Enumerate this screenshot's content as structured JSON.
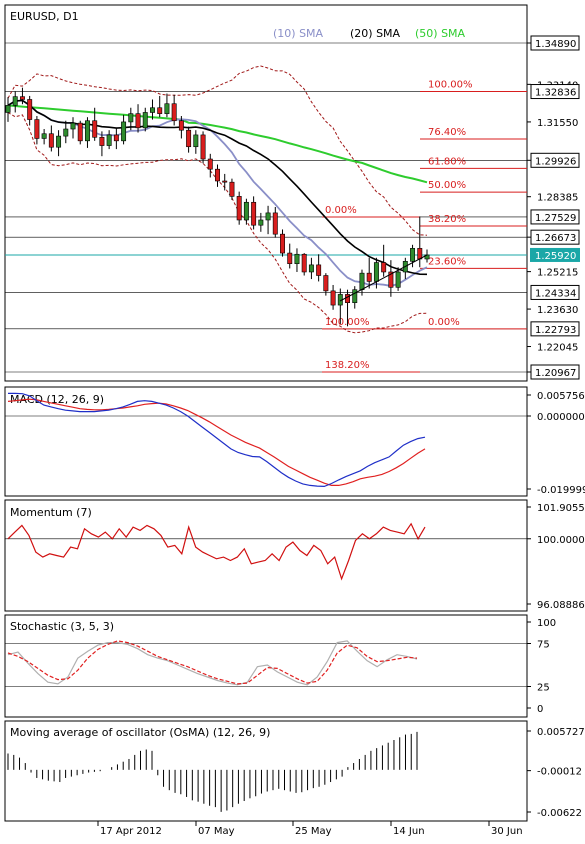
{
  "chart_data": [
    {
      "type": "candlestick",
      "title": "EURUSD, D1",
      "legend": [
        {
          "name": "(10) SMA",
          "color": "#8A8FC8"
        },
        {
          "name": "(20) SMA",
          "color": "#000000"
        },
        {
          "name": "(50) SMA",
          "color": "#2ECC2E"
        }
      ],
      "y_ticks": [
        "1.34890",
        "1.33140",
        "1.31550",
        "1.29926",
        "1.28385",
        "1.26673",
        "1.25215",
        "1.23630",
        "1.22045",
        "1.20967"
      ],
      "price_tags": [
        {
          "label": "1.34890",
          "value": 1.3489,
          "style": "box"
        },
        {
          "label": "1.32836",
          "value": 1.32836,
          "style": "box"
        },
        {
          "label": "1.29926",
          "value": 1.29926,
          "style": "box"
        },
        {
          "label": "1.27529",
          "value": 1.27529,
          "style": "box"
        },
        {
          "label": "1.26673",
          "value": 1.26673,
          "style": "box"
        },
        {
          "label": "1.25920",
          "value": 1.2592,
          "style": "current"
        },
        {
          "label": "1.24334",
          "value": 1.24334,
          "style": "box"
        },
        {
          "label": "1.22793",
          "value": 1.22793,
          "style": "box"
        },
        {
          "label": "1.20967",
          "value": 1.20967,
          "style": "box"
        }
      ],
      "fib_upper": [
        {
          "label": "100.00%",
          "value": 1.32836
        },
        {
          "label": "76.40%",
          "value": 1.30826
        },
        {
          "label": "61.80%",
          "value": 1.29585
        },
        {
          "label": "50.00%",
          "value": 1.28577
        },
        {
          "label": "38.20%",
          "value": 1.27143
        },
        {
          "label": "23.60%",
          "value": 1.25352
        },
        {
          "label": "0.00%",
          "value": 1.22793
        }
      ],
      "fib_lower": [
        {
          "label": "0.00%",
          "value": 1.27529
        },
        {
          "label": "100.00%",
          "value": 1.22793
        },
        {
          "label": "138.20%",
          "value": 1.20967
        }
      ],
      "candles": [
        [
          1.3195,
          1.326,
          1.3155,
          1.3225
        ],
        [
          1.3225,
          1.3285,
          1.3195,
          1.3262
        ],
        [
          1.3262,
          1.33,
          1.323,
          1.325
        ],
        [
          1.325,
          1.3265,
          1.314,
          1.3165
        ],
        [
          1.3165,
          1.318,
          1.306,
          1.3085
        ],
        [
          1.3085,
          1.3125,
          1.306,
          1.3105
        ],
        [
          1.3105,
          1.314,
          1.303,
          1.3048
        ],
        [
          1.3048,
          1.312,
          1.301,
          1.3095
        ],
        [
          1.3095,
          1.316,
          1.3065,
          1.3125
        ],
        [
          1.3125,
          1.3175,
          1.3085,
          1.315
        ],
        [
          1.315,
          1.316,
          1.306,
          1.3075
        ],
        [
          1.3075,
          1.3175,
          1.3045,
          1.316
        ],
        [
          1.316,
          1.3215,
          1.3075,
          1.309
        ],
        [
          1.309,
          1.3115,
          1.301,
          1.3055
        ],
        [
          1.3055,
          1.312,
          1.304,
          1.31
        ],
        [
          1.31,
          1.313,
          1.304,
          1.3075
        ],
        [
          1.3075,
          1.3185,
          1.306,
          1.3155
        ],
        [
          1.3155,
          1.3215,
          1.312,
          1.319
        ],
        [
          1.319,
          1.323,
          1.311,
          1.313
        ],
        [
          1.313,
          1.3215,
          1.3115,
          1.3195
        ],
        [
          1.3195,
          1.325,
          1.3165,
          1.3215
        ],
        [
          1.3215,
          1.3265,
          1.3175,
          1.319
        ],
        [
          1.319,
          1.3275,
          1.3175,
          1.3232
        ],
        [
          1.3232,
          1.327,
          1.314,
          1.316
        ],
        [
          1.316,
          1.318,
          1.3085,
          1.312
        ],
        [
          1.312,
          1.3135,
          1.3025,
          1.305
        ],
        [
          1.305,
          1.312,
          1.302,
          1.31
        ],
        [
          1.31,
          1.3115,
          1.298,
          1.2998
        ],
        [
          1.2998,
          1.302,
          1.292,
          1.2955
        ],
        [
          1.2955,
          1.2975,
          1.288,
          1.2905
        ],
        [
          1.2905,
          1.2935,
          1.2865,
          1.29
        ],
        [
          1.29,
          1.2915,
          1.2825,
          1.284
        ],
        [
          1.284,
          1.286,
          1.272,
          1.274
        ],
        [
          1.274,
          1.283,
          1.272,
          1.2815
        ],
        [
          1.2815,
          1.284,
          1.27,
          1.2718
        ],
        [
          1.2718,
          1.277,
          1.269,
          1.274
        ],
        [
          1.274,
          1.28,
          1.268,
          1.277
        ],
        [
          1.277,
          1.2795,
          1.2665,
          1.268
        ],
        [
          1.268,
          1.27,
          1.2585,
          1.26
        ],
        [
          1.26,
          1.264,
          1.2535,
          1.2555
        ],
        [
          1.2555,
          1.262,
          1.252,
          1.2595
        ],
        [
          1.2595,
          1.26,
          1.2505,
          1.252
        ],
        [
          1.252,
          1.258,
          1.249,
          1.255
        ],
        [
          1.255,
          1.2595,
          1.248,
          1.2505
        ],
        [
          1.2505,
          1.2515,
          1.242,
          1.244
        ],
        [
          1.244,
          1.2465,
          1.236,
          1.238
        ],
        [
          1.238,
          1.245,
          1.23,
          1.2425
        ],
        [
          1.2425,
          1.2445,
          1.229,
          1.239
        ],
        [
          1.239,
          1.246,
          1.2365,
          1.2445
        ],
        [
          1.2445,
          1.253,
          1.242,
          1.2515
        ],
        [
          1.2515,
          1.258,
          1.245,
          1.248
        ],
        [
          1.248,
          1.258,
          1.245,
          1.256
        ],
        [
          1.256,
          1.2635,
          1.25,
          1.252
        ],
        [
          1.252,
          1.257,
          1.2415,
          1.2455
        ],
        [
          1.2455,
          1.254,
          1.244,
          1.252
        ],
        [
          1.252,
          1.258,
          1.249,
          1.2565
        ],
        [
          1.2565,
          1.2635,
          1.254,
          1.262
        ],
        [
          1.262,
          1.2755,
          1.254,
          1.2575
        ],
        [
          1.2575,
          1.2615,
          1.256,
          1.2592
        ]
      ]
    },
    {
      "type": "line",
      "title": "MACD (12, 26, 9)",
      "y_ticks": [
        "0.005756",
        "0.000000",
        "-0.019999"
      ],
      "series": [
        {
          "color": "#1F2FC8",
          "values": [
            0.0062,
            0.0062,
            0.0061,
            0.0055,
            0.0042,
            0.003,
            0.0025,
            0.002,
            0.0016,
            0.0014,
            0.0012,
            0.0012,
            0.0012,
            0.0014,
            0.0016,
            0.002,
            0.0025,
            0.0032,
            0.004,
            0.0042,
            0.004,
            0.0035,
            0.003,
            0.0022,
            0.0012,
            0.0,
            -0.0015,
            -0.003,
            -0.0045,
            -0.006,
            -0.0075,
            -0.009,
            -0.01,
            -0.0106,
            -0.0111,
            -0.0112,
            -0.0125,
            -0.014,
            -0.0155,
            -0.0168,
            -0.0178,
            -0.0186,
            -0.019,
            -0.0192,
            -0.0193,
            -0.0185,
            -0.0175,
            -0.0166,
            -0.0158,
            -0.015,
            -0.0138,
            -0.0128,
            -0.012,
            -0.0112,
            -0.0096,
            -0.008,
            -0.007,
            -0.0062,
            -0.0058
          ]
        },
        {
          "color": "#E02020",
          "values": [
            0.004,
            0.0042,
            0.0044,
            0.0046,
            0.0044,
            0.004,
            0.0036,
            0.0032,
            0.0028,
            0.0024,
            0.002,
            0.0018,
            0.0017,
            0.0017,
            0.0018,
            0.002,
            0.0022,
            0.0025,
            0.0028,
            0.0032,
            0.0034,
            0.0035,
            0.0033,
            0.0028,
            0.0022,
            0.0015,
            0.0005,
            -0.0005,
            -0.0016,
            -0.0028,
            -0.004,
            -0.0052,
            -0.0062,
            -0.0072,
            -0.008,
            -0.0088,
            -0.01,
            -0.0112,
            -0.0125,
            -0.0138,
            -0.0148,
            -0.0158,
            -0.0168,
            -0.0176,
            -0.0184,
            -0.019,
            -0.019,
            -0.0186,
            -0.018,
            -0.0172,
            -0.0168,
            -0.0165,
            -0.016,
            -0.0152,
            -0.0142,
            -0.013,
            -0.0116,
            -0.0102,
            -0.009
          ]
        }
      ]
    },
    {
      "type": "line",
      "title": "Momentum (7)",
      "y_ticks": [
        "101.9055",
        "100.0000",
        "96.08886"
      ],
      "series": [
        {
          "color": "#D01010",
          "values": [
            100.0,
            100.4,
            100.8,
            100.2,
            99.2,
            98.9,
            99.1,
            99.0,
            98.9,
            99.5,
            99.4,
            100.6,
            100.3,
            100.1,
            100.4,
            100.0,
            100.6,
            100.1,
            100.7,
            100.5,
            100.8,
            100.6,
            100.2,
            99.5,
            99.6,
            99.1,
            100.7,
            99.5,
            99.2,
            99.0,
            98.8,
            98.9,
            98.7,
            98.9,
            99.4,
            98.5,
            98.6,
            98.7,
            99.1,
            98.7,
            99.5,
            99.8,
            99.3,
            99.0,
            99.6,
            99.3,
            98.5,
            98.9,
            97.6,
            98.7,
            99.9,
            100.3,
            100.0,
            100.3,
            100.7,
            100.5,
            100.4,
            100.3,
            100.9,
            100.0,
            100.7
          ]
        }
      ]
    },
    {
      "type": "line",
      "title": "Stochastic (3, 5, 3)",
      "y_ticks": [
        "100",
        "75",
        "25",
        "0"
      ],
      "series": [
        {
          "color": "#B0B0B0",
          "values": [
            62,
            65,
            52,
            40,
            30,
            28,
            36,
            58,
            66,
            73,
            76,
            76,
            74,
            69,
            62,
            58,
            55,
            50,
            45,
            40,
            36,
            32,
            29,
            27,
            30,
            48,
            50,
            42,
            36,
            30,
            27,
            36,
            54,
            76,
            78,
            66,
            55,
            48,
            56,
            62,
            60,
            57
          ]
        },
        {
          "color": "#E02020",
          "style": "dashed",
          "values": [
            64,
            60,
            54,
            46,
            38,
            33,
            34,
            44,
            58,
            68,
            74,
            78,
            76,
            72,
            66,
            60,
            56,
            52,
            48,
            43,
            38,
            34,
            31,
            28,
            29,
            38,
            47,
            46,
            40,
            34,
            29,
            31,
            44,
            64,
            73,
            70,
            60,
            54,
            55,
            57,
            59,
            58
          ]
        }
      ]
    },
    {
      "type": "bar",
      "title": "Moving average of oscillator (OsMA) (12, 26, 9)",
      "y_ticks": [
        "0.005727",
        "-0.00012",
        "-0.00622"
      ],
      "values": [
        0.0024,
        0.0022,
        0.0018,
        0.001,
        -0.0004,
        -0.0012,
        -0.0014,
        -0.0016,
        -0.0017,
        -0.0018,
        -0.0012,
        -0.001,
        -0.0008,
        -0.0006,
        -0.0004,
        -0.0003,
        -0.0002,
        0.0,
        0.0004,
        0.0008,
        0.0012,
        0.0016,
        0.0022,
        0.0028,
        0.003,
        0.0028,
        -0.0008,
        -0.0025,
        -0.003,
        -0.0034,
        -0.0036,
        -0.004,
        -0.0045,
        -0.0047,
        -0.005,
        -0.0053,
        -0.0055,
        -0.0062,
        -0.006,
        -0.0055,
        -0.005,
        -0.0046,
        -0.0042,
        -0.0039,
        -0.0035,
        -0.0032,
        -0.003,
        -0.0028,
        -0.003,
        -0.0032,
        -0.0034,
        -0.0033,
        -0.003,
        -0.0027,
        -0.0025,
        -0.0022,
        -0.0018,
        -0.0014,
        -0.001,
        0.0004,
        0.001,
        0.0016,
        0.0022,
        0.0028,
        0.0032,
        0.0036,
        0.004,
        0.0044,
        0.0048,
        0.0052,
        0.0053,
        0.0056
      ]
    }
  ],
  "time_axis": {
    "labels": [
      "17 Apr 2012",
      "07 May",
      "25 May",
      "14 Jun",
      "30 Jun"
    ]
  },
  "colors": {
    "background": "#FFFFFF",
    "grid": "#000000",
    "bull_body": "#2E8B2E",
    "bear_body": "#D81E1E",
    "fib": "#D81E1E",
    "current_price": "#1AA7A7",
    "trendline": "#000000"
  }
}
